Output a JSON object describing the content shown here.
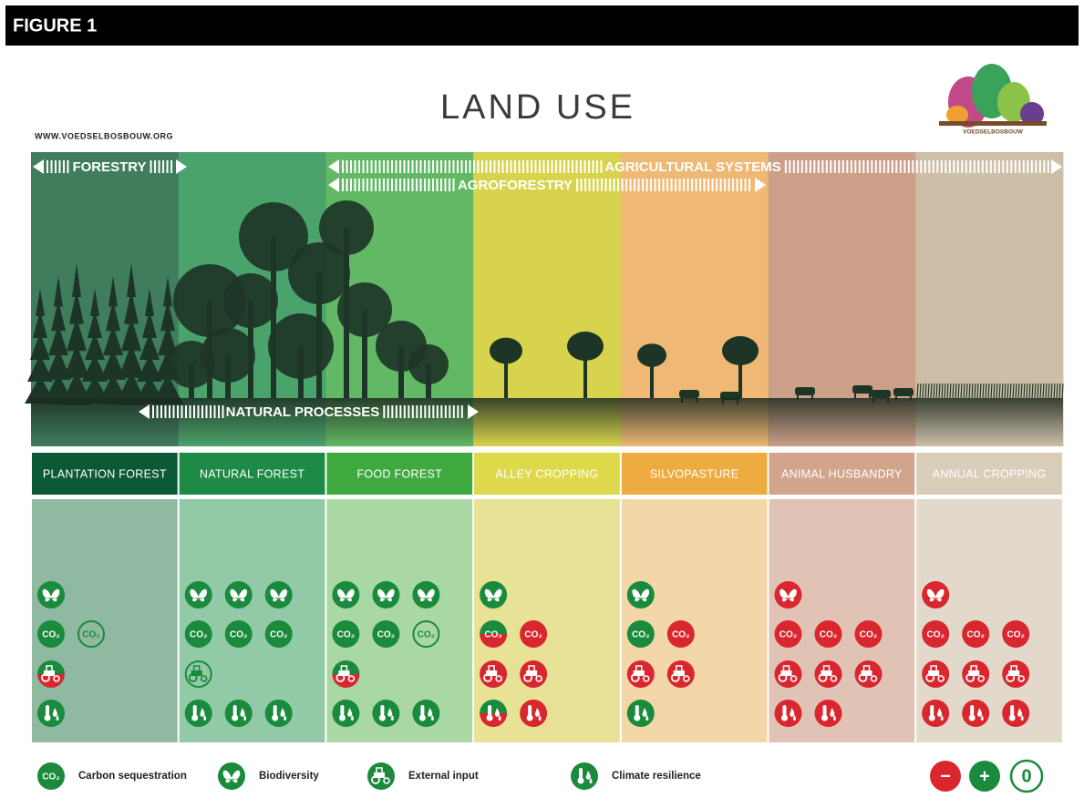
{
  "header": {
    "figure": "FIGURE 1"
  },
  "title": "LAND USE",
  "website": "WWW.VOEDSELBOSBOUW.ORG",
  "logo_text": "VOEDSELBOSBOUW",
  "banners": {
    "forestry": "FORESTRY",
    "agricultural_systems": "AGRICULTURAL SYSTEMS",
    "agroforestry": "AGROFORESTRY",
    "natural_processes": "NATURAL PROCESSES"
  },
  "columns": [
    "PLANTATION FOREST",
    "NATURAL FOREST",
    "FOOD FOREST",
    "ALLEY CROPPING",
    "SILVOPASTURE",
    "ANIMAL HUSBANDRY",
    "ANNUAL CROPPING"
  ],
  "icon_text": {
    "co2": "CO₂"
  },
  "legend": [
    "Carbon sequestration",
    "Biodiversity",
    "External input",
    "Climate resilience"
  ],
  "key": [
    "−",
    "+",
    "0"
  ]
}
